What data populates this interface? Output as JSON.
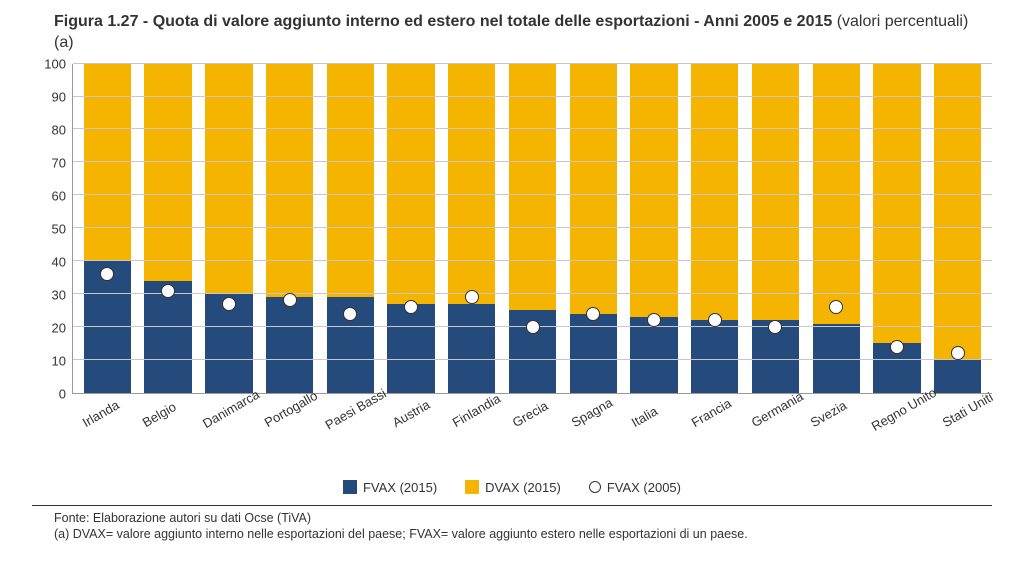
{
  "title": {
    "main": "Figura 1.27 - Quota di valore aggiunto interno ed estero nel totale delle esportazioni - Anni 2005 e 2015 ",
    "sub": "(valori percentuali) (a)",
    "fontsize": 16
  },
  "chart": {
    "type": "stacked-bar-with-marker",
    "ylim": [
      0,
      100
    ],
    "ytick_step": 10,
    "grid_color": "#c8c8c8",
    "background_color": "#ffffff",
    "axis_color": "#999999",
    "label_fontsize": 13,
    "fvax_color": "#254a7c",
    "dvax_color": "#f4b400",
    "marker_border_color": "#333333",
    "marker_fill_color": "#ffffff",
    "bar_width_pct": 78,
    "categories": [
      "Irlanda",
      "Belgio",
      "Danimarca",
      "Portogallo",
      "Paesi Bassi",
      "Austria",
      "Finlandia",
      "Grecia",
      "Spagna",
      "Italia",
      "Francia",
      "Germania",
      "Svezia",
      "Regno Unito",
      "Stati Uniti"
    ],
    "fvax_2015": [
      40,
      34,
      30,
      29,
      29,
      27,
      27,
      25,
      24,
      23,
      22,
      22,
      21,
      15,
      10
    ],
    "fvax_2005": [
      36,
      31,
      27,
      28,
      24,
      26,
      29,
      20,
      24,
      22,
      22,
      20,
      26,
      14,
      12
    ]
  },
  "legend": {
    "fvax": "FVAX (2015)",
    "dvax": "DVAX (2015)",
    "marker": "FVAX (2005)"
  },
  "footnotes": {
    "source": "Fonte: Elaborazione autori su dati Ocse (TiVA)",
    "note_a": "(a) DVAX= valore aggiunto interno nelle esportazioni del paese; FVAX= valore aggiunto estero nelle esportazioni di un paese."
  }
}
